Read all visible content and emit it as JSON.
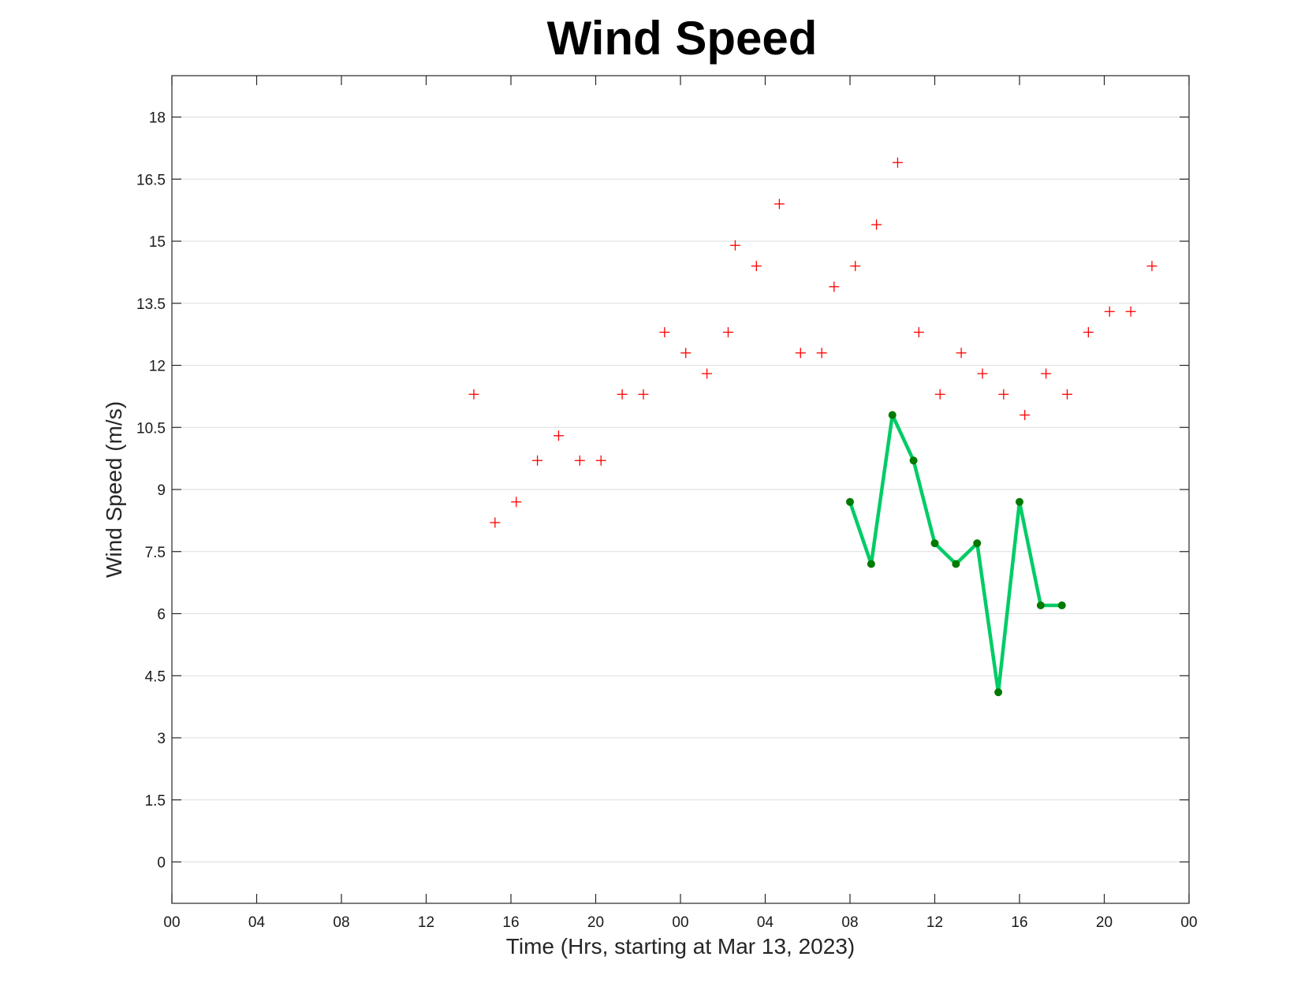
{
  "chart_data": {
    "type": "line",
    "title": "Wind Speed",
    "xlabel": "Time (Hrs, starting at Mar 13, 2023)",
    "ylabel": "Wind Speed (m/s)",
    "xlim": [
      "2023-03-13 00:00",
      "2023-03-15 00:00"
    ],
    "ylim": [
      -1,
      19
    ],
    "x_ticks": [
      "00",
      "04",
      "08",
      "12",
      "16",
      "20",
      "00",
      "04",
      "08",
      "12",
      "16",
      "20",
      "00"
    ],
    "y_ticks": [
      "0",
      "1.5",
      "3",
      "4.5",
      "6",
      "7.5",
      "9",
      "10.5",
      "12",
      "13.5",
      "15",
      "16.5",
      "18"
    ],
    "grid": "horizontal",
    "series": [
      {
        "marker": "plus",
        "color": "#ff0000",
        "points": [
          {
            "x": "2023-03-13 14:15",
            "y": 11.3
          },
          {
            "x": "2023-03-13 15:15",
            "y": 8.2
          },
          {
            "x": "2023-03-13 16:15",
            "y": 8.7
          },
          {
            "x": "2023-03-13 17:15",
            "y": 9.7
          },
          {
            "x": "2023-03-13 18:15",
            "y": 10.3
          },
          {
            "x": "2023-03-13 19:15",
            "y": 9.7
          },
          {
            "x": "2023-03-13 20:15",
            "y": 9.7
          },
          {
            "x": "2023-03-13 21:15",
            "y": 11.3
          },
          {
            "x": "2023-03-13 22:15",
            "y": 11.3
          },
          {
            "x": "2023-03-13 23:15",
            "y": 12.8
          },
          {
            "x": "2023-03-14 00:15",
            "y": 12.3
          },
          {
            "x": "2023-03-14 01:15",
            "y": 11.8
          },
          {
            "x": "2023-03-14 02:15",
            "y": 12.8
          },
          {
            "x": "2023-03-14 02:35",
            "y": 14.9
          },
          {
            "x": "2023-03-14 03:35",
            "y": 14.4
          },
          {
            "x": "2023-03-14 04:40",
            "y": 15.9
          },
          {
            "x": "2023-03-14 05:40",
            "y": 12.3
          },
          {
            "x": "2023-03-14 06:40",
            "y": 12.3
          },
          {
            "x": "2023-03-14 07:15",
            "y": 13.9
          },
          {
            "x": "2023-03-14 08:15",
            "y": 14.4
          },
          {
            "x": "2023-03-14 09:15",
            "y": 15.4
          },
          {
            "x": "2023-03-14 10:15",
            "y": 16.9
          },
          {
            "x": "2023-03-14 11:15",
            "y": 12.8
          },
          {
            "x": "2023-03-14 12:15",
            "y": 11.3
          },
          {
            "x": "2023-03-14 13:15",
            "y": 12.3
          },
          {
            "x": "2023-03-14 14:15",
            "y": 11.8
          },
          {
            "x": "2023-03-14 15:15",
            "y": 11.3
          },
          {
            "x": "2023-03-14 16:15",
            "y": 10.8
          },
          {
            "x": "2023-03-14 17:15",
            "y": 11.8
          },
          {
            "x": "2023-03-14 18:15",
            "y": 11.3
          },
          {
            "x": "2023-03-14 19:15",
            "y": 12.8
          },
          {
            "x": "2023-03-14 20:15",
            "y": 13.3
          },
          {
            "x": "2023-03-14 21:15",
            "y": 13.3
          },
          {
            "x": "2023-03-14 22:15",
            "y": 14.4
          }
        ]
      },
      {
        "marker": "dot",
        "line_color": "#00cc66",
        "marker_color": "#007a00",
        "points": [
          {
            "x": "2023-03-14 08:00",
            "y": 8.7
          },
          {
            "x": "2023-03-14 09:00",
            "y": 7.2
          },
          {
            "x": "2023-03-14 10:00",
            "y": 10.8
          },
          {
            "x": "2023-03-14 11:00",
            "y": 9.7
          },
          {
            "x": "2023-03-14 12:00",
            "y": 7.7
          },
          {
            "x": "2023-03-14 13:00",
            "y": 7.2
          },
          {
            "x": "2023-03-14 14:00",
            "y": 7.7
          },
          {
            "x": "2023-03-14 15:00",
            "y": 4.1
          },
          {
            "x": "2023-03-14 16:00",
            "y": 8.7
          },
          {
            "x": "2023-03-14 17:00",
            "y": 6.2
          },
          {
            "x": "2023-03-14 18:00",
            "y": 6.2
          }
        ]
      }
    ]
  }
}
